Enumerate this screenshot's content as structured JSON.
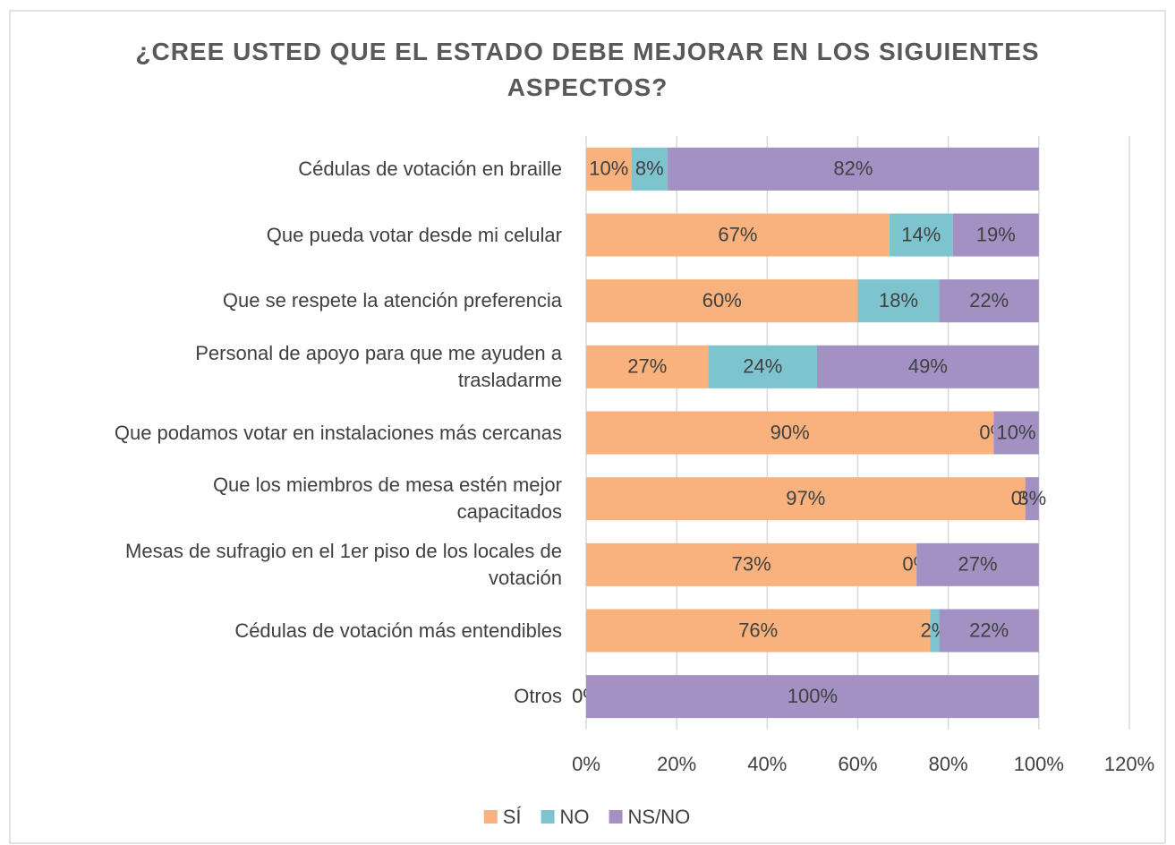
{
  "chart_data": {
    "type": "stacked_barh",
    "title": "¿CREE USTED QUE EL ESTADO DEBE MEJORAR EN LOS SIGUIENTES ASPECTOS?",
    "categories": [
      "Cédulas de votación en braille",
      "Que pueda votar desde mi celular",
      "Que se respete la atención preferencia",
      "Personal de apoyo para que me ayuden a\ntrasladarme",
      "Que podamos votar en instalaciones más cercanas",
      "Que los miembros de mesa estén mejor\ncapacitados",
      "Mesas de sufragio en el 1er piso de los locales de\nvotación",
      "Cédulas de votación más entendibles",
      "Otros"
    ],
    "series": [
      {
        "name": "SÍ",
        "color": "#f9b27d",
        "values": [
          10,
          67,
          60,
          27,
          90,
          97,
          73,
          76,
          0
        ],
        "value_labels": [
          "10%",
          "67%",
          "60%",
          "27%",
          "90%",
          "97%",
          "73%",
          "76%",
          "0%"
        ]
      },
      {
        "name": "NO",
        "color": "#7ec4cf",
        "values": [
          8,
          14,
          18,
          24,
          0,
          0,
          0,
          2,
          0
        ],
        "value_labels": [
          "8%",
          "14%",
          "18%",
          "24%",
          "0%",
          "0%",
          "0%",
          "2%",
          "0%"
        ]
      },
      {
        "name": "NS/NO",
        "color": "#a291c2",
        "values": [
          82,
          19,
          22,
          49,
          10,
          3,
          27,
          22,
          100
        ],
        "value_labels": [
          "82%",
          "19%",
          "22%",
          "49%",
          "10%",
          "3%",
          "27%",
          "22%",
          "100%"
        ]
      }
    ],
    "xlim": [
      0,
      120
    ],
    "xticks": [
      {
        "value": 0,
        "label": "0%"
      },
      {
        "value": 20,
        "label": "20%"
      },
      {
        "value": 40,
        "label": "40%"
      },
      {
        "value": 60,
        "label": "60%"
      },
      {
        "value": 80,
        "label": "80%"
      },
      {
        "value": 100,
        "label": "100%"
      },
      {
        "value": 120,
        "label": "120%"
      }
    ],
    "grid": true,
    "legend": "bottom"
  }
}
